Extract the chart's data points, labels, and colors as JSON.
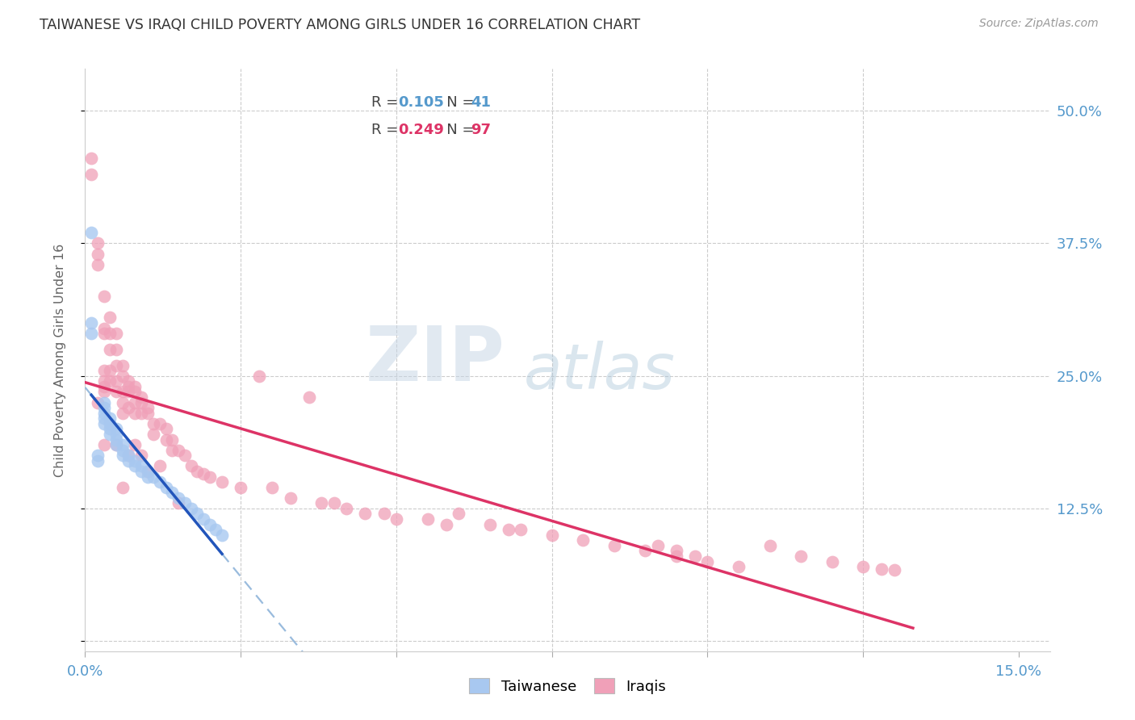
{
  "title": "TAIWANESE VS IRAQI CHILD POVERTY AMONG GIRLS UNDER 16 CORRELATION CHART",
  "source": "Source: ZipAtlas.com",
  "ylabel": "Child Poverty Among Girls Under 16",
  "xlim": [
    0.0,
    0.155
  ],
  "ylim": [
    -0.01,
    0.54
  ],
  "xtick_positions": [
    0.0,
    0.025,
    0.05,
    0.075,
    0.1,
    0.125,
    0.15
  ],
  "xtick_labels": [
    "0.0%",
    "",
    "",
    "",
    "",
    "",
    "15.0%"
  ],
  "ytick_positions": [
    0.0,
    0.125,
    0.25,
    0.375,
    0.5
  ],
  "ytick_labels": [
    "",
    "12.5%",
    "25.0%",
    "37.5%",
    "50.0%"
  ],
  "r1": "0.105",
  "n1": "41",
  "r2": "0.249",
  "n2": "97",
  "blue_scatter": "#a8c8f0",
  "pink_scatter": "#f0a0b8",
  "blue_line": "#2255bb",
  "pink_line": "#dd3366",
  "dashed_line": "#99bbdd",
  "grid_color": "#cccccc",
  "tick_color": "#5599cc",
  "title_color": "#333333",
  "source_color": "#999999",
  "bg_color": "#ffffff",
  "tw_x": [
    0.001,
    0.001,
    0.001,
    0.002,
    0.002,
    0.003,
    0.003,
    0.003,
    0.003,
    0.003,
    0.004,
    0.004,
    0.004,
    0.004,
    0.005,
    0.005,
    0.005,
    0.005,
    0.006,
    0.006,
    0.006,
    0.007,
    0.007,
    0.008,
    0.008,
    0.009,
    0.009,
    0.01,
    0.01,
    0.011,
    0.012,
    0.013,
    0.014,
    0.015,
    0.016,
    0.017,
    0.018,
    0.019,
    0.02,
    0.021,
    0.022
  ],
  "tw_y": [
    0.385,
    0.3,
    0.29,
    0.17,
    0.175,
    0.22,
    0.225,
    0.215,
    0.21,
    0.205,
    0.2,
    0.195,
    0.205,
    0.21,
    0.185,
    0.19,
    0.195,
    0.2,
    0.175,
    0.18,
    0.185,
    0.17,
    0.175,
    0.165,
    0.17,
    0.16,
    0.165,
    0.155,
    0.16,
    0.155,
    0.15,
    0.145,
    0.14,
    0.135,
    0.13,
    0.125,
    0.12,
    0.115,
    0.11,
    0.105,
    0.1
  ],
  "ir_x": [
    0.001,
    0.001,
    0.002,
    0.002,
    0.002,
    0.002,
    0.003,
    0.003,
    0.003,
    0.003,
    0.003,
    0.003,
    0.003,
    0.003,
    0.004,
    0.004,
    0.004,
    0.004,
    0.004,
    0.005,
    0.005,
    0.005,
    0.005,
    0.005,
    0.005,
    0.006,
    0.006,
    0.006,
    0.006,
    0.006,
    0.006,
    0.007,
    0.007,
    0.007,
    0.007,
    0.007,
    0.008,
    0.008,
    0.008,
    0.008,
    0.008,
    0.009,
    0.009,
    0.009,
    0.009,
    0.01,
    0.01,
    0.01,
    0.011,
    0.011,
    0.012,
    0.012,
    0.013,
    0.013,
    0.014,
    0.014,
    0.015,
    0.015,
    0.016,
    0.017,
    0.018,
    0.019,
    0.02,
    0.022,
    0.025,
    0.028,
    0.03,
    0.033,
    0.036,
    0.038,
    0.04,
    0.042,
    0.045,
    0.048,
    0.05,
    0.055,
    0.058,
    0.06,
    0.065,
    0.068,
    0.07,
    0.075,
    0.08,
    0.085,
    0.09,
    0.092,
    0.095,
    0.098,
    0.1,
    0.105,
    0.11,
    0.115,
    0.12,
    0.125,
    0.095,
    0.128,
    0.13
  ],
  "ir_y": [
    0.455,
    0.44,
    0.375,
    0.365,
    0.355,
    0.225,
    0.325,
    0.295,
    0.29,
    0.24,
    0.245,
    0.255,
    0.235,
    0.185,
    0.305,
    0.29,
    0.275,
    0.255,
    0.245,
    0.29,
    0.275,
    0.26,
    0.245,
    0.235,
    0.185,
    0.26,
    0.25,
    0.235,
    0.225,
    0.215,
    0.145,
    0.245,
    0.24,
    0.235,
    0.22,
    0.175,
    0.24,
    0.235,
    0.225,
    0.215,
    0.185,
    0.23,
    0.225,
    0.215,
    0.175,
    0.22,
    0.215,
    0.16,
    0.205,
    0.195,
    0.205,
    0.165,
    0.2,
    0.19,
    0.19,
    0.18,
    0.18,
    0.13,
    0.175,
    0.165,
    0.16,
    0.158,
    0.155,
    0.15,
    0.145,
    0.25,
    0.145,
    0.135,
    0.23,
    0.13,
    0.13,
    0.125,
    0.12,
    0.12,
    0.115,
    0.115,
    0.11,
    0.12,
    0.11,
    0.105,
    0.105,
    0.1,
    0.095,
    0.09,
    0.085,
    0.09,
    0.085,
    0.08,
    0.075,
    0.07,
    0.09,
    0.08,
    0.075,
    0.07,
    0.08,
    0.068,
    0.067
  ]
}
